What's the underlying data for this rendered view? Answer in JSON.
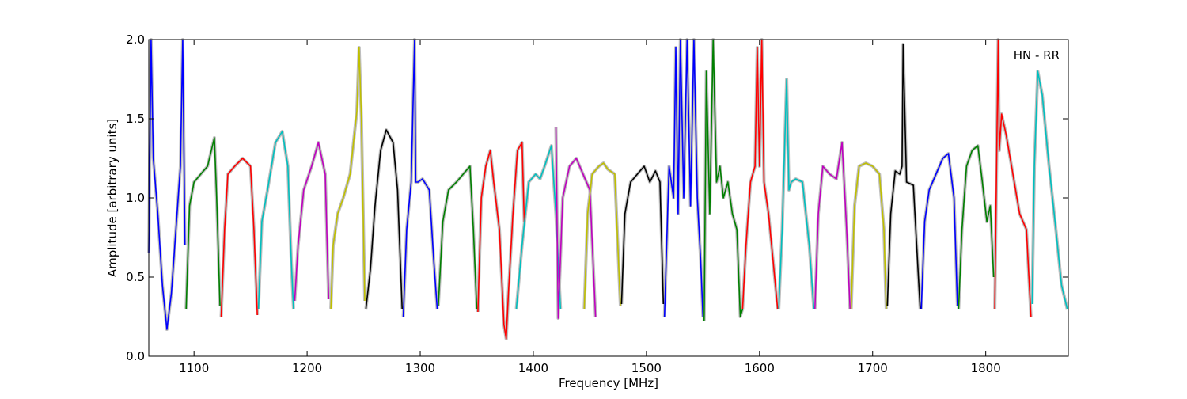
{
  "chart_data": {
    "type": "line",
    "xlabel": "Frequency [MHz]",
    "ylabel": "Amplitude [arbitrary units]",
    "xlim": [
      1060,
      1873
    ],
    "ylim": [
      0.0,
      2.0
    ],
    "xticks": [
      "1100",
      "1200",
      "1300",
      "1400",
      "1500",
      "1600",
      "1700",
      "1800"
    ],
    "yticks": [
      "0.0",
      "0.5",
      "1.0",
      "1.5",
      "2.0"
    ],
    "annotation": "HN - RR",
    "grid": false,
    "envelope_color": "#bfbfbf",
    "series": [
      {
        "color": "#0000ff",
        "x": [
          1060,
          1062,
          1064,
          1068,
          1072,
          1076,
          1080,
          1084,
          1088,
          1090,
          1092
        ],
        "y": [
          0.65,
          2.0,
          1.25,
          0.9,
          0.45,
          0.17,
          0.4,
          0.8,
          1.2,
          2.0,
          0.7
        ]
      },
      {
        "color": "#008000",
        "x": [
          1093,
          1096,
          1100,
          1106,
          1112,
          1118,
          1120,
          1123
        ],
        "y": [
          0.3,
          0.95,
          1.1,
          1.15,
          1.2,
          1.38,
          1.0,
          0.32
        ]
      },
      {
        "color": "#ff0000",
        "x": [
          1124,
          1127,
          1130,
          1136,
          1143,
          1150,
          1153,
          1156
        ],
        "y": [
          0.25,
          0.8,
          1.15,
          1.2,
          1.25,
          1.2,
          0.8,
          0.26
        ]
      },
      {
        "color": "#00bfbf",
        "x": [
          1157,
          1160,
          1165,
          1172,
          1178,
          1183,
          1186,
          1188
        ],
        "y": [
          0.3,
          0.85,
          1.05,
          1.35,
          1.42,
          1.2,
          0.6,
          0.3
        ]
      },
      {
        "color": "#bf00bf",
        "x": [
          1189,
          1192,
          1197,
          1204,
          1210,
          1216,
          1219
        ],
        "y": [
          0.35,
          0.7,
          1.05,
          1.2,
          1.35,
          1.15,
          0.36
        ]
      },
      {
        "color": "#bfbf00",
        "x": [
          1221,
          1223,
          1227,
          1232,
          1238,
          1244,
          1246,
          1248,
          1251
        ],
        "y": [
          0.3,
          0.7,
          0.9,
          1.0,
          1.15,
          1.55,
          1.95,
          1.5,
          0.35
        ]
      },
      {
        "color": "#000000",
        "x": [
          1252,
          1256,
          1260,
          1265,
          1270,
          1276,
          1280,
          1284
        ],
        "y": [
          0.3,
          0.55,
          0.95,
          1.3,
          1.43,
          1.35,
          1.05,
          0.3
        ]
      },
      {
        "color": "#0000ff",
        "x": [
          1285,
          1288,
          1292,
          1295,
          1296,
          1298,
          1302,
          1308,
          1312,
          1315
        ],
        "y": [
          0.25,
          0.8,
          1.1,
          2.0,
          1.1,
          1.1,
          1.12,
          1.05,
          0.6,
          0.3
        ]
      },
      {
        "color": "#008000",
        "x": [
          1316,
          1320,
          1325,
          1332,
          1338,
          1344,
          1347,
          1350
        ],
        "y": [
          0.32,
          0.85,
          1.05,
          1.1,
          1.15,
          1.2,
          0.8,
          0.3
        ]
      },
      {
        "color": "#ff0000",
        "x": [
          1351,
          1354,
          1358,
          1362,
          1365,
          1370,
          1374,
          1376,
          1378,
          1382,
          1386,
          1390,
          1392
        ],
        "y": [
          0.28,
          1.0,
          1.2,
          1.3,
          1.1,
          0.8,
          0.2,
          0.11,
          0.4,
          0.9,
          1.3,
          1.35,
          0.85
        ]
      },
      {
        "color": "#00bfbf",
        "x": [
          1385,
          1390,
          1396,
          1402,
          1406,
          1410,
          1416,
          1420,
          1424
        ],
        "y": [
          0.3,
          0.7,
          1.1,
          1.15,
          1.12,
          1.2,
          1.33,
          0.9,
          0.3
        ]
      },
      {
        "color": "#bf00bf",
        "x": [
          1420,
          1422,
          1426,
          1432,
          1438,
          1444,
          1450,
          1455
        ],
        "y": [
          1.45,
          0.24,
          1.0,
          1.2,
          1.25,
          1.15,
          1.05,
          0.25
        ]
      },
      {
        "color": "#bfbf00",
        "x": [
          1445,
          1448,
          1452,
          1458,
          1462,
          1466,
          1472,
          1477
        ],
        "y": [
          0.3,
          0.9,
          1.15,
          1.2,
          1.22,
          1.18,
          1.15,
          0.32
        ]
      },
      {
        "color": "#000000",
        "x": [
          1478,
          1481,
          1486,
          1492,
          1498,
          1503,
          1508,
          1512,
          1515
        ],
        "y": [
          0.33,
          0.9,
          1.1,
          1.15,
          1.2,
          1.1,
          1.17,
          1.1,
          0.33
        ]
      },
      {
        "color": "#0000ff",
        "x": [
          1516,
          1520,
          1524,
          1526,
          1528,
          1530,
          1533,
          1536,
          1539,
          1542,
          1545,
          1548,
          1550
        ],
        "y": [
          0.25,
          1.2,
          1.0,
          1.95,
          0.9,
          2.0,
          1.0,
          2.0,
          0.95,
          2.0,
          1.0,
          0.6,
          0.25
        ]
      },
      {
        "color": "#008000",
        "x": [
          1551,
          1553,
          1556,
          1559,
          1562,
          1565,
          1568,
          1572,
          1576,
          1580,
          1583,
          1585
        ],
        "y": [
          0.22,
          1.8,
          0.9,
          2.0,
          1.1,
          1.2,
          1.0,
          1.1,
          0.9,
          0.8,
          0.25,
          0.3
        ]
      },
      {
        "color": "#ff0000",
        "x": [
          1585,
          1588,
          1592,
          1596,
          1598,
          1600,
          1602,
          1604,
          1608,
          1612,
          1616
        ],
        "y": [
          0.3,
          0.7,
          1.1,
          1.2,
          1.95,
          1.2,
          2.0,
          1.1,
          0.9,
          0.6,
          0.3
        ]
      },
      {
        "color": "#00bfbf",
        "x": [
          1617,
          1620,
          1624,
          1626,
          1628,
          1632,
          1638,
          1644,
          1648
        ],
        "y": [
          0.3,
          0.8,
          1.75,
          1.05,
          1.1,
          1.12,
          1.1,
          0.7,
          0.3
        ]
      },
      {
        "color": "#bf00bf",
        "x": [
          1649,
          1652,
          1656,
          1662,
          1668,
          1673,
          1677,
          1680
        ],
        "y": [
          0.3,
          0.9,
          1.2,
          1.15,
          1.12,
          1.35,
          0.8,
          0.3
        ]
      },
      {
        "color": "#bfbf00",
        "x": [
          1681,
          1684,
          1688,
          1694,
          1700,
          1706,
          1710,
          1712
        ],
        "y": [
          0.3,
          0.95,
          1.2,
          1.22,
          1.2,
          1.15,
          0.8,
          0.3
        ]
      },
      {
        "color": "#000000",
        "x": [
          1713,
          1716,
          1720,
          1724,
          1726,
          1727,
          1730,
          1736,
          1742
        ],
        "y": [
          0.32,
          0.9,
          1.17,
          1.15,
          1.2,
          1.97,
          1.1,
          1.08,
          0.3
        ]
      },
      {
        "color": "#0000ff",
        "x": [
          1743,
          1746,
          1750,
          1756,
          1762,
          1767,
          1772,
          1775
        ],
        "y": [
          0.3,
          0.85,
          1.05,
          1.15,
          1.25,
          1.28,
          1.0,
          0.32
        ]
      },
      {
        "color": "#008000",
        "x": [
          1776,
          1779,
          1783,
          1788,
          1793,
          1797,
          1801,
          1804,
          1807
        ],
        "y": [
          0.3,
          0.8,
          1.2,
          1.3,
          1.33,
          1.1,
          0.85,
          0.95,
          0.5
        ]
      },
      {
        "color": "#ff0000",
        "x": [
          1808,
          1811,
          1812,
          1814,
          1818,
          1824,
          1830,
          1836,
          1840
        ],
        "y": [
          0.3,
          2.0,
          1.3,
          1.53,
          1.4,
          1.15,
          0.9,
          0.8,
          0.25
        ]
      },
      {
        "color": "#00bfbf",
        "x": [
          1841,
          1843,
          1846,
          1850,
          1856,
          1862,
          1867,
          1872
        ],
        "y": [
          0.33,
          1.2,
          1.8,
          1.65,
          1.2,
          0.8,
          0.45,
          0.3
        ]
      }
    ]
  }
}
